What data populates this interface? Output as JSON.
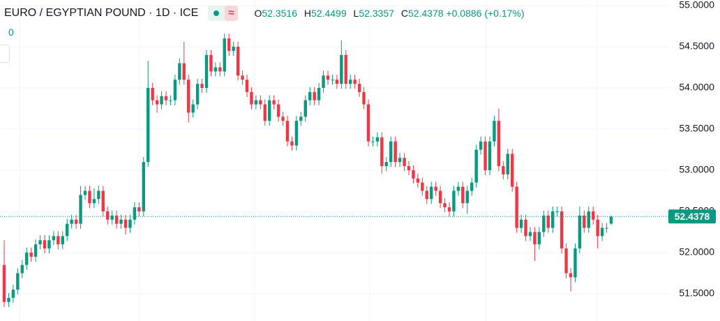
{
  "chart_data": {
    "type": "candlestick",
    "title": "EURO / EGYPTIAN POUND · 1D · ICE",
    "legend": {
      "open_label": "O",
      "open": "52.3516",
      "high_label": "H",
      "high": "52.4499",
      "low_label": "L",
      "low": "52.3357",
      "close_label": "C",
      "close": "52.4378",
      "change": "+0.0886",
      "change_percent": "(+0.17%)"
    },
    "indicator_value": "0",
    "up_color": "#089981",
    "down_color": "#f23645",
    "ylim": [
      51.169,
      55.068
    ],
    "yticks": [
      {
        "value": 51.5,
        "label": "51.5000"
      },
      {
        "value": 52,
        "label": "52.0000"
      },
      {
        "value": 52.5,
        "label": "52.5000"
      },
      {
        "value": 53,
        "label": "53.0000"
      },
      {
        "value": 53.5,
        "label": "53.5000"
      },
      {
        "value": 54,
        "label": "54.0000"
      },
      {
        "value": 54.5,
        "label": "54.5000"
      },
      {
        "value": 55,
        "label": "55.0000"
      }
    ],
    "grid": true,
    "last_price": {
      "value": 52.4378,
      "label": "52.4378"
    },
    "open": [
      51.85,
      51.4,
      51.45,
      51.55,
      51.75,
      51.85,
      52.0,
      51.95,
      52.1,
      52.15,
      52.05,
      52.15,
      52.2,
      52.1,
      52.2,
      52.35,
      52.4,
      52.35,
      52.7,
      52.75,
      52.6,
      52.65,
      52.75,
      52.5,
      52.4,
      52.45,
      52.35,
      52.4,
      52.3,
      52.4,
      52.55,
      52.5,
      53.1,
      54.0,
      53.85,
      53.8,
      53.9,
      53.85,
      53.85,
      54.1,
      54.3,
      54.1,
      53.7,
      53.8,
      54.05,
      54.0,
      54.4,
      54.2,
      54.25,
      54.2,
      54.6,
      54.45,
      54.5,
      54.15,
      54.1,
      53.95,
      53.8,
      53.85,
      53.8,
      53.6,
      53.85,
      53.8,
      53.65,
      53.6,
      53.35,
      53.3,
      53.6,
      53.65,
      53.85,
      53.95,
      53.85,
      54.0,
      54.15,
      54.1,
      54.1,
      54.05,
      54.4,
      54.05,
      54.1,
      54.05,
      53.95,
      53.8,
      53.35,
      53.35,
      53.4,
      53.05,
      53.1,
      53.35,
      53.1,
      53.15,
      53.05,
      53.0,
      52.9,
      52.85,
      52.75,
      52.65,
      52.8,
      52.75,
      52.6,
      52.55,
      52.5,
      52.75,
      52.8,
      52.6,
      52.75,
      52.85,
      53.25,
      53.35,
      53.0,
      53.35,
      53.6,
      53.05,
      52.95,
      53.2,
      52.8,
      52.3,
      52.4,
      52.2,
      52.25,
      52.1,
      52.25,
      52.45,
      52.3,
      52.5,
      52.5,
      52.05,
      51.75,
      51.7,
      52.05,
      52.45,
      52.3,
      52.5,
      52.4,
      52.2,
      52.3,
      52.3516
    ],
    "high": [
      52.15,
      51.51,
      51.61,
      51.81,
      51.91,
      52.06,
      52.06,
      52.16,
      52.21,
      52.21,
      52.21,
      52.26,
      52.26,
      52.26,
      52.41,
      52.46,
      52.46,
      52.81,
      52.81,
      52.81,
      52.78,
      52.81,
      52.81,
      52.56,
      52.51,
      52.51,
      52.46,
      52.46,
      52.46,
      52.61,
      52.61,
      53.16,
      54.33,
      54.06,
      53.91,
      53.96,
      53.96,
      53.91,
      54.16,
      54.36,
      54.56,
      54.16,
      53.86,
      54.11,
      54.11,
      54.46,
      54.46,
      54.31,
      54.31,
      54.66,
      54.66,
      54.56,
      54.56,
      54.21,
      54.16,
      54.01,
      53.91,
      53.91,
      53.86,
      53.91,
      53.91,
      53.86,
      53.71,
      53.66,
      53.41,
      53.66,
      53.71,
      53.91,
      54.01,
      54.01,
      54.06,
      54.21,
      54.21,
      54.16,
      54.16,
      54.58,
      54.46,
      54.16,
      54.16,
      54.11,
      54.01,
      53.86,
      53.41,
      53.46,
      53.46,
      53.16,
      53.41,
      53.41,
      53.21,
      53.21,
      53.11,
      53.06,
      52.96,
      52.91,
      52.81,
      52.86,
      52.86,
      52.81,
      52.66,
      52.61,
      52.81,
      52.86,
      52.86,
      52.81,
      52.91,
      53.31,
      53.41,
      53.41,
      53.41,
      53.66,
      53.75,
      53.11,
      53.26,
      53.26,
      52.86,
      52.46,
      52.46,
      52.31,
      52.31,
      52.31,
      52.51,
      52.51,
      52.56,
      52.56,
      52.56,
      52.11,
      51.81,
      52.11,
      52.56,
      52.51,
      52.56,
      52.56,
      52.46,
      52.36,
      52.36,
      52.4499
    ],
    "low": [
      51.34,
      51.34,
      51.39,
      51.49,
      51.69,
      51.79,
      51.89,
      51.89,
      52.04,
      51.99,
      51.99,
      52.09,
      52.04,
      52.04,
      52.14,
      52.29,
      52.29,
      52.29,
      52.64,
      52.54,
      52.54,
      52.59,
      52.44,
      52.34,
      52.34,
      52.29,
      52.29,
      52.22,
      52.24,
      52.34,
      52.44,
      52.44,
      53.04,
      53.79,
      53.7,
      53.74,
      53.79,
      53.79,
      53.79,
      54.04,
      54.04,
      53.58,
      53.64,
      53.74,
      53.94,
      53.94,
      54.14,
      54.14,
      54.14,
      54.14,
      54.39,
      54.39,
      54.09,
      54.04,
      53.89,
      53.74,
      53.74,
      53.74,
      53.54,
      53.54,
      53.74,
      53.59,
      53.54,
      53.29,
      53.24,
      53.24,
      53.54,
      53.59,
      53.79,
      53.79,
      53.79,
      53.94,
      54.04,
      54.04,
      53.99,
      53.99,
      53.99,
      53.99,
      53.99,
      53.89,
      53.74,
      53.29,
      53.29,
      53.29,
      52.96,
      52.99,
      53.04,
      53.04,
      53.04,
      52.99,
      52.94,
      52.84,
      52.79,
      52.69,
      52.59,
      52.59,
      52.69,
      52.54,
      52.49,
      52.44,
      52.44,
      52.69,
      52.54,
      52.47,
      52.69,
      52.79,
      53.19,
      52.94,
      52.94,
      53.29,
      52.99,
      52.89,
      52.89,
      52.74,
      52.24,
      52.24,
      52.14,
      52.14,
      51.9,
      52.04,
      52.19,
      52.24,
      52.24,
      52.44,
      51.99,
      51.69,
      51.53,
      51.64,
      51.99,
      52.24,
      52.24,
      52.34,
      52.05,
      52.14,
      52.24,
      52.3357
    ],
    "close": [
      51.4,
      51.45,
      51.55,
      51.75,
      51.85,
      52.0,
      51.95,
      52.1,
      52.15,
      52.05,
      52.15,
      52.2,
      52.1,
      52.2,
      52.35,
      52.4,
      52.35,
      52.7,
      52.75,
      52.6,
      52.65,
      52.75,
      52.5,
      52.4,
      52.45,
      52.35,
      52.4,
      52.3,
      52.4,
      52.55,
      52.5,
      53.1,
      54.0,
      53.85,
      53.8,
      53.9,
      53.85,
      53.85,
      54.1,
      54.3,
      54.1,
      53.7,
      53.8,
      54.05,
      54.0,
      54.4,
      54.2,
      54.25,
      54.2,
      54.6,
      54.45,
      54.5,
      54.15,
      54.1,
      53.95,
      53.8,
      53.85,
      53.8,
      53.6,
      53.85,
      53.8,
      53.65,
      53.6,
      53.35,
      53.3,
      53.6,
      53.65,
      53.85,
      53.95,
      53.85,
      54.0,
      54.15,
      54.1,
      54.1,
      54.05,
      54.4,
      54.05,
      54.1,
      54.05,
      53.95,
      53.8,
      53.35,
      53.35,
      53.4,
      53.05,
      53.1,
      53.35,
      53.1,
      53.15,
      53.05,
      53.0,
      52.9,
      52.85,
      52.75,
      52.65,
      52.8,
      52.75,
      52.6,
      52.55,
      52.5,
      52.75,
      52.8,
      52.6,
      52.75,
      52.85,
      53.25,
      53.35,
      53.0,
      53.35,
      53.6,
      53.05,
      52.95,
      53.2,
      52.8,
      52.3,
      52.4,
      52.2,
      52.25,
      52.1,
      52.25,
      52.45,
      52.3,
      52.5,
      52.5,
      52.05,
      51.75,
      51.7,
      52.05,
      52.45,
      52.3,
      52.5,
      52.4,
      52.2,
      52.3,
      52.3,
      52.4378
    ]
  }
}
